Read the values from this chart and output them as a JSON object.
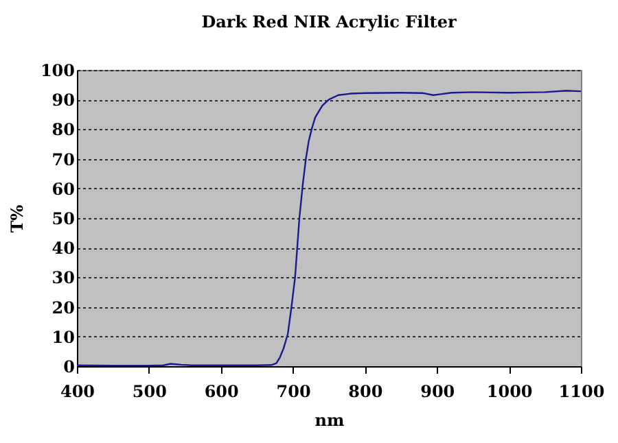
{
  "chart_data": {
    "type": "line",
    "title": "Dark Red NIR Acrylic Filter",
    "xlabel": "nm",
    "ylabel": "T%",
    "x": [
      400,
      450,
      500,
      520,
      530,
      545,
      560,
      600,
      650,
      670,
      677,
      682,
      687,
      693,
      698,
      703,
      709,
      714,
      718,
      722,
      726,
      731,
      736,
      741,
      750,
      763,
      780,
      800,
      850,
      880,
      895,
      905,
      920,
      950,
      1000,
      1050,
      1080,
      1100
    ],
    "series": [
      {
        "color": "#1a1a8c",
        "values": [
          0.3,
          0.2,
          0.2,
          0.3,
          0.8,
          0.5,
          0.3,
          0.3,
          0.3,
          0.4,
          1,
          3,
          6,
          11,
          20,
          30,
          50,
          62,
          70,
          76,
          80,
          84,
          86,
          88,
          90,
          91.5,
          92,
          92.2,
          92.3,
          92.2,
          91.5,
          91.8,
          92.3,
          92.5,
          92.3,
          92.5,
          93,
          92.8
        ]
      }
    ],
    "xlim": [
      400,
      1100
    ],
    "xticks": [
      400,
      500,
      600,
      700,
      800,
      900,
      1000,
      1100
    ],
    "ylim": [
      0,
      100
    ],
    "yticks": [
      0,
      10,
      20,
      30,
      40,
      50,
      60,
      70,
      80,
      90,
      100
    ],
    "grid": "y",
    "marker": "none",
    "line_style": "solid"
  }
}
